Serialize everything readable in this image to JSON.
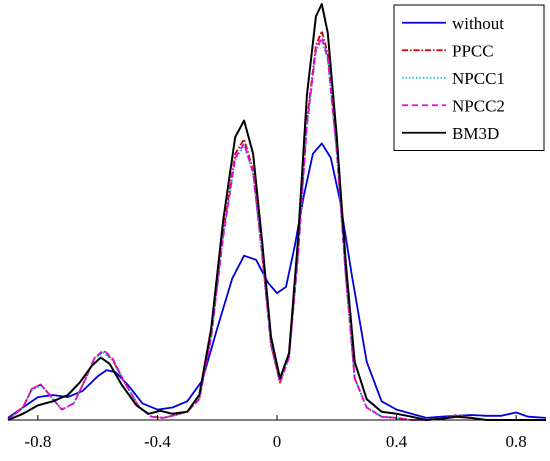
{
  "chart_data": {
    "type": "line",
    "title": "",
    "xlabel": "",
    "ylabel": "",
    "xlim": [
      -0.9,
      0.9
    ],
    "ylim": [
      0,
      1.0
    ],
    "xticks": [
      -0.8,
      -0.4,
      0,
      0.4,
      0.8
    ],
    "xtick_labels": [
      "-0.8",
      "-0.4",
      "0",
      "0.4",
      "0.8"
    ],
    "legend_position": "top-right",
    "grid": false,
    "series": [
      {
        "name": "without",
        "color": "#0000dd",
        "dash": "solid",
        "points": [
          [
            -0.9,
            0.005
          ],
          [
            -0.85,
            0.03
          ],
          [
            -0.8,
            0.055
          ],
          [
            -0.75,
            0.06
          ],
          [
            -0.7,
            0.055
          ],
          [
            -0.65,
            0.07
          ],
          [
            -0.6,
            0.105
          ],
          [
            -0.57,
            0.12
          ],
          [
            -0.54,
            0.115
          ],
          [
            -0.5,
            0.085
          ],
          [
            -0.45,
            0.04
          ],
          [
            -0.4,
            0.025
          ],
          [
            -0.35,
            0.03
          ],
          [
            -0.3,
            0.045
          ],
          [
            -0.25,
            0.095
          ],
          [
            -0.2,
            0.22
          ],
          [
            -0.15,
            0.34
          ],
          [
            -0.11,
            0.395
          ],
          [
            -0.07,
            0.385
          ],
          [
            -0.03,
            0.33
          ],
          [
            0.0,
            0.305
          ],
          [
            0.03,
            0.32
          ],
          [
            0.06,
            0.42
          ],
          [
            0.09,
            0.54
          ],
          [
            0.12,
            0.64
          ],
          [
            0.15,
            0.665
          ],
          [
            0.18,
            0.63
          ],
          [
            0.21,
            0.53
          ],
          [
            0.25,
            0.35
          ],
          [
            0.3,
            0.14
          ],
          [
            0.35,
            0.045
          ],
          [
            0.4,
            0.025
          ],
          [
            0.45,
            0.015
          ],
          [
            0.5,
            0.005
          ],
          [
            0.55,
            0.008
          ],
          [
            0.6,
            0.01
          ],
          [
            0.65,
            0.012
          ],
          [
            0.7,
            0.01
          ],
          [
            0.75,
            0.01
          ],
          [
            0.8,
            0.018
          ],
          [
            0.84,
            0.008
          ],
          [
            0.9,
            0.005
          ]
        ]
      },
      {
        "name": "PPCC",
        "color": "#cc0000",
        "dash": "6,2,1.5,2",
        "points": [
          [
            -0.9,
            0.0
          ],
          [
            -0.85,
            0.03
          ],
          [
            -0.82,
            0.075
          ],
          [
            -0.79,
            0.085
          ],
          [
            -0.76,
            0.06
          ],
          [
            -0.72,
            0.025
          ],
          [
            -0.68,
            0.04
          ],
          [
            -0.64,
            0.1
          ],
          [
            -0.61,
            0.15
          ],
          [
            -0.58,
            0.165
          ],
          [
            -0.55,
            0.145
          ],
          [
            -0.51,
            0.09
          ],
          [
            -0.46,
            0.03
          ],
          [
            -0.42,
            0.008
          ],
          [
            -0.38,
            0.005
          ],
          [
            -0.34,
            0.012
          ],
          [
            -0.3,
            0.02
          ],
          [
            -0.26,
            0.05
          ],
          [
            -0.22,
            0.2
          ],
          [
            -0.18,
            0.45
          ],
          [
            -0.14,
            0.64
          ],
          [
            -0.11,
            0.675
          ],
          [
            -0.08,
            0.6
          ],
          [
            -0.05,
            0.4
          ],
          [
            -0.02,
            0.18
          ],
          [
            0.01,
            0.09
          ],
          [
            0.04,
            0.15
          ],
          [
            0.07,
            0.4
          ],
          [
            0.1,
            0.72
          ],
          [
            0.13,
            0.9
          ],
          [
            0.15,
            0.935
          ],
          [
            0.17,
            0.88
          ],
          [
            0.2,
            0.65
          ],
          [
            0.23,
            0.35
          ],
          [
            0.26,
            0.1
          ],
          [
            0.3,
            0.03
          ],
          [
            0.35,
            0.008
          ],
          [
            0.4,
            0.005
          ],
          [
            0.45,
            0.0
          ],
          [
            0.5,
            0.0
          ],
          [
            0.55,
            0.003
          ],
          [
            0.6,
            0.01
          ],
          [
            0.65,
            0.005
          ],
          [
            0.7,
            0.0
          ],
          [
            0.8,
            0.0
          ],
          [
            0.9,
            0.0
          ]
        ]
      },
      {
        "name": "NPCC1",
        "color": "#00cccc",
        "dash": "1.5,2",
        "points": [
          [
            -0.9,
            0.0
          ],
          [
            -0.85,
            0.03
          ],
          [
            -0.82,
            0.072
          ],
          [
            -0.79,
            0.083
          ],
          [
            -0.76,
            0.058
          ],
          [
            -0.72,
            0.025
          ],
          [
            -0.68,
            0.04
          ],
          [
            -0.64,
            0.1
          ],
          [
            -0.61,
            0.148
          ],
          [
            -0.58,
            0.162
          ],
          [
            -0.55,
            0.143
          ],
          [
            -0.51,
            0.09
          ],
          [
            -0.46,
            0.03
          ],
          [
            -0.42,
            0.008
          ],
          [
            -0.38,
            0.005
          ],
          [
            -0.34,
            0.012
          ],
          [
            -0.3,
            0.02
          ],
          [
            -0.26,
            0.05
          ],
          [
            -0.22,
            0.2
          ],
          [
            -0.18,
            0.44
          ],
          [
            -0.14,
            0.625
          ],
          [
            -0.11,
            0.66
          ],
          [
            -0.08,
            0.59
          ],
          [
            -0.05,
            0.395
          ],
          [
            -0.02,
            0.18
          ],
          [
            0.01,
            0.09
          ],
          [
            0.04,
            0.15
          ],
          [
            0.07,
            0.39
          ],
          [
            0.1,
            0.7
          ],
          [
            0.13,
            0.885
          ],
          [
            0.15,
            0.915
          ],
          [
            0.17,
            0.865
          ],
          [
            0.2,
            0.64
          ],
          [
            0.23,
            0.345
          ],
          [
            0.26,
            0.1
          ],
          [
            0.3,
            0.03
          ],
          [
            0.35,
            0.008
          ],
          [
            0.4,
            0.005
          ],
          [
            0.45,
            0.0
          ],
          [
            0.5,
            0.0
          ],
          [
            0.55,
            0.003
          ],
          [
            0.6,
            0.01
          ],
          [
            0.65,
            0.005
          ],
          [
            0.7,
            0.0
          ],
          [
            0.8,
            0.0
          ],
          [
            0.9,
            0.0
          ]
        ]
      },
      {
        "name": "NPCC2",
        "color": "#ee00ee",
        "dash": "6,4",
        "points": [
          [
            -0.9,
            0.0
          ],
          [
            -0.85,
            0.03
          ],
          [
            -0.82,
            0.075
          ],
          [
            -0.79,
            0.085
          ],
          [
            -0.76,
            0.06
          ],
          [
            -0.72,
            0.025
          ],
          [
            -0.68,
            0.04
          ],
          [
            -0.64,
            0.1
          ],
          [
            -0.61,
            0.15
          ],
          [
            -0.58,
            0.168
          ],
          [
            -0.55,
            0.148
          ],
          [
            -0.51,
            0.09
          ],
          [
            -0.46,
            0.03
          ],
          [
            -0.42,
            0.008
          ],
          [
            -0.38,
            0.005
          ],
          [
            -0.34,
            0.012
          ],
          [
            -0.3,
            0.02
          ],
          [
            -0.26,
            0.05
          ],
          [
            -0.22,
            0.2
          ],
          [
            -0.18,
            0.44
          ],
          [
            -0.14,
            0.63
          ],
          [
            -0.11,
            0.665
          ],
          [
            -0.08,
            0.595
          ],
          [
            -0.05,
            0.4
          ],
          [
            -0.02,
            0.18
          ],
          [
            0.01,
            0.09
          ],
          [
            0.04,
            0.15
          ],
          [
            0.07,
            0.39
          ],
          [
            0.1,
            0.71
          ],
          [
            0.13,
            0.89
          ],
          [
            0.15,
            0.92
          ],
          [
            0.17,
            0.87
          ],
          [
            0.2,
            0.645
          ],
          [
            0.23,
            0.35
          ],
          [
            0.26,
            0.1
          ],
          [
            0.3,
            0.03
          ],
          [
            0.35,
            0.008
          ],
          [
            0.4,
            0.005
          ],
          [
            0.45,
            0.0
          ],
          [
            0.5,
            0.0
          ],
          [
            0.55,
            0.003
          ],
          [
            0.6,
            0.012
          ],
          [
            0.65,
            0.005
          ],
          [
            0.7,
            0.0
          ],
          [
            0.8,
            0.0
          ],
          [
            0.9,
            0.0
          ]
        ]
      },
      {
        "name": "BM3D",
        "color": "#000000",
        "dash": "solid",
        "points": [
          [
            -0.9,
            0.0
          ],
          [
            -0.85,
            0.015
          ],
          [
            -0.8,
            0.035
          ],
          [
            -0.75,
            0.045
          ],
          [
            -0.7,
            0.06
          ],
          [
            -0.66,
            0.09
          ],
          [
            -0.62,
            0.13
          ],
          [
            -0.59,
            0.15
          ],
          [
            -0.56,
            0.135
          ],
          [
            -0.52,
            0.085
          ],
          [
            -0.47,
            0.035
          ],
          [
            -0.43,
            0.015
          ],
          [
            -0.39,
            0.022
          ],
          [
            -0.35,
            0.015
          ],
          [
            -0.3,
            0.02
          ],
          [
            -0.26,
            0.06
          ],
          [
            -0.22,
            0.22
          ],
          [
            -0.18,
            0.48
          ],
          [
            -0.14,
            0.68
          ],
          [
            -0.11,
            0.72
          ],
          [
            -0.08,
            0.64
          ],
          [
            -0.05,
            0.43
          ],
          [
            -0.02,
            0.2
          ],
          [
            0.01,
            0.1
          ],
          [
            0.04,
            0.16
          ],
          [
            0.07,
            0.43
          ],
          [
            0.1,
            0.78
          ],
          [
            0.13,
            0.97
          ],
          [
            0.15,
            1.0
          ],
          [
            0.17,
            0.93
          ],
          [
            0.2,
            0.68
          ],
          [
            0.23,
            0.38
          ],
          [
            0.26,
            0.14
          ],
          [
            0.3,
            0.05
          ],
          [
            0.35,
            0.02
          ],
          [
            0.4,
            0.015
          ],
          [
            0.45,
            0.008
          ],
          [
            0.5,
            0.0
          ],
          [
            0.55,
            0.003
          ],
          [
            0.6,
            0.008
          ],
          [
            0.65,
            0.005
          ],
          [
            0.7,
            0.0
          ],
          [
            0.8,
            0.0
          ],
          [
            0.9,
            0.0
          ]
        ]
      }
    ]
  }
}
